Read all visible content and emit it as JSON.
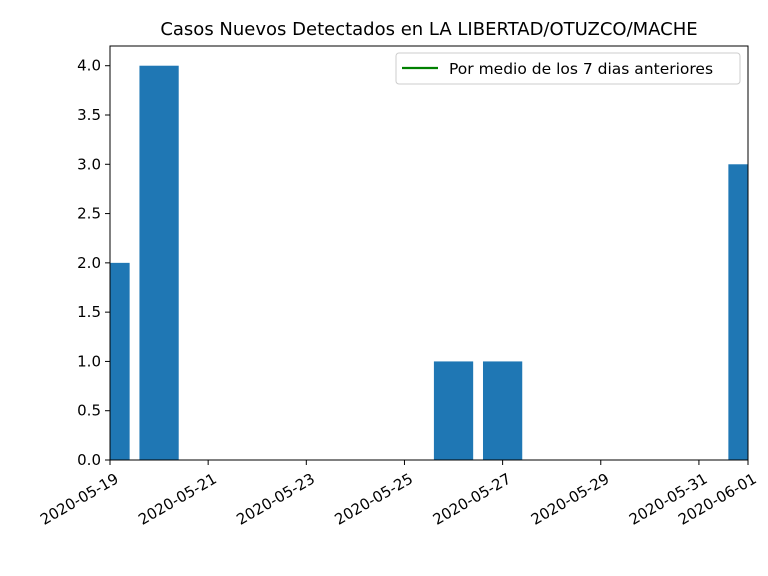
{
  "chart_data": {
    "type": "bar",
    "title": "Casos Nuevos Detectados en LA LIBERTAD/OTUZCO/MACHE",
    "xlabel": "",
    "ylabel": "",
    "x_dates": [
      "2020-05-19",
      "2020-05-20",
      "2020-05-21",
      "2020-05-22",
      "2020-05-23",
      "2020-05-24",
      "2020-05-25",
      "2020-05-26",
      "2020-05-27",
      "2020-05-28",
      "2020-05-29",
      "2020-05-30",
      "2020-05-31",
      "2020-06-01"
    ],
    "values": [
      2,
      4,
      0,
      0,
      0,
      0,
      0,
      1,
      1,
      0,
      0,
      0,
      0,
      3
    ],
    "x_tick_labels": [
      "2020-05-19",
      "2020-05-21",
      "2020-05-23",
      "2020-05-25",
      "2020-05-27",
      "2020-05-29",
      "2020-05-31",
      "2020-06-01"
    ],
    "y_tick_labels": [
      "0.0",
      "0.5",
      "1.0",
      "1.5",
      "2.0",
      "2.5",
      "3.0",
      "3.5",
      "4.0"
    ],
    "xlim": [
      "2020-05-19",
      "2020-06-01"
    ],
    "ylim": [
      0,
      4.2
    ],
    "bar_color": "#1f77b4",
    "series": [
      {
        "name": "Por medio de los 7 dias anteriores",
        "values": [],
        "color": "#008000"
      }
    ],
    "legend": {
      "position": "top-right",
      "entries": [
        "Por medio de los 7 dias anteriores"
      ]
    },
    "grid": false
  }
}
